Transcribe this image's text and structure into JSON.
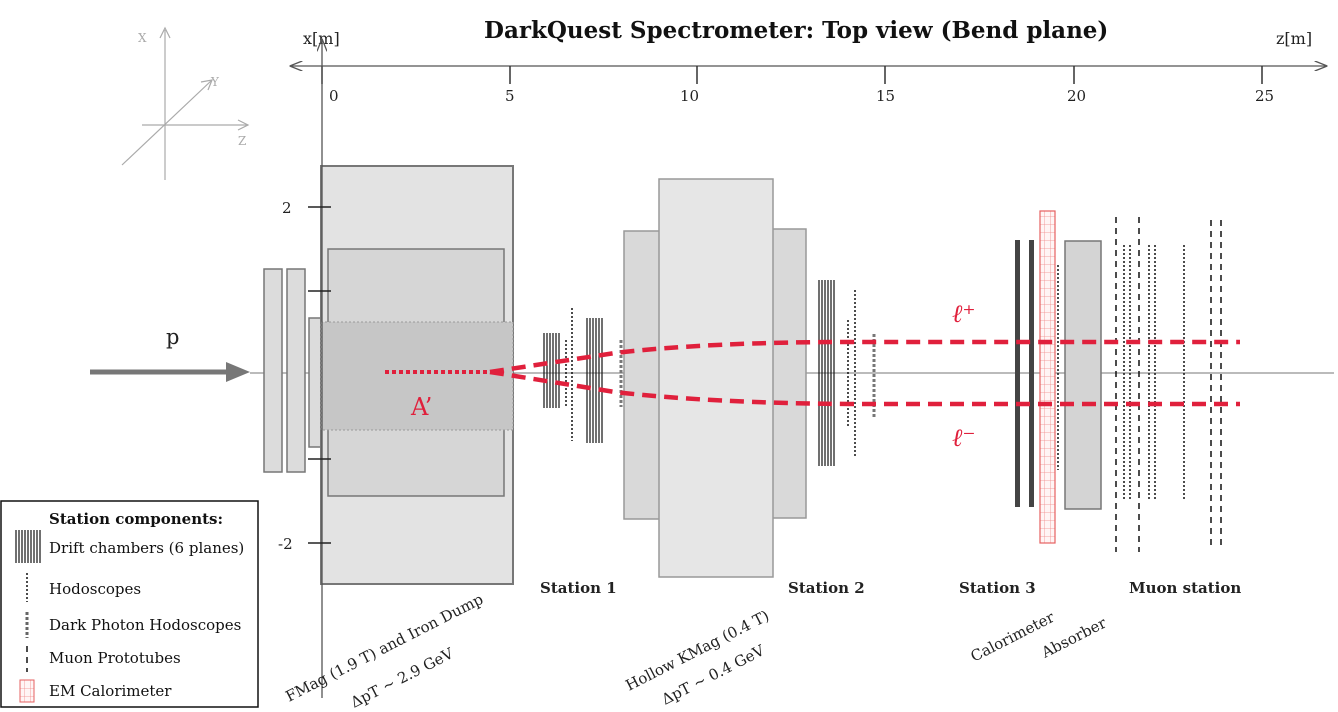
{
  "title": "DarkQuest Spectrometer: Top view (Bend plane)",
  "axes": {
    "x_label": "x[m]",
    "z_label": "z[m]",
    "z_ticks": [
      "0",
      "5",
      "10",
      "15",
      "20",
      "25"
    ],
    "x_ticks": [
      "2",
      "-2"
    ],
    "coord_labels": {
      "x": "X",
      "y": "Y",
      "z": "Z"
    }
  },
  "beam_label": "p",
  "particles": {
    "dark_photon": "A’",
    "lepton_plus": "ℓ⁺",
    "lepton_minus": "ℓ⁻"
  },
  "stations": [
    "Station 1",
    "Station 2",
    "Station 3",
    "Muon station"
  ],
  "components": {
    "fmag_line1": "FMag (1.9 T) and Iron Dump",
    "fmag_line2": "ΔpT ~ 2.9 GeV",
    "kmag_line1": "Hollow KMag (0.4 T)",
    "kmag_line2": "ΔpT ~ 0.4 GeV",
    "calorimeter": "Calorimeter",
    "absorber": "Absorber"
  },
  "legend": {
    "title": "Station components:",
    "items": [
      "Drift chambers (6 planes)",
      "Hodoscopes",
      "Dark Photon Hodoscopes",
      "Muon Prototubes",
      "EM Calorimeter"
    ]
  },
  "colors": {
    "accent": "#e0203c",
    "magnet_fill": "#e2e2e2",
    "magnet_stroke": "#777777",
    "axis": "#555555",
    "detector": "#333333"
  }
}
